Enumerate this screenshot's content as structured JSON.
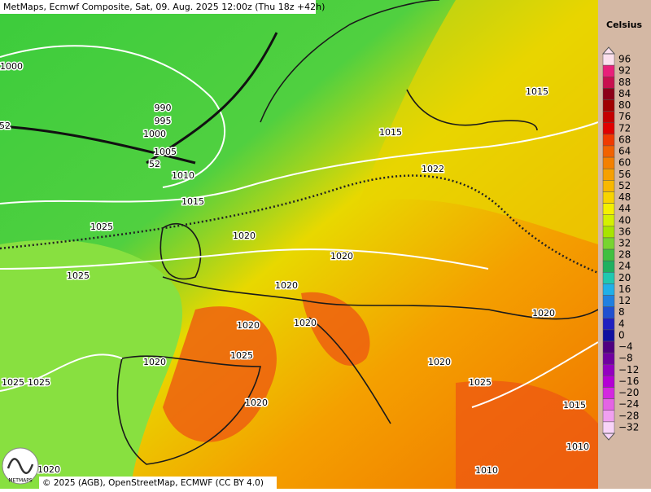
{
  "header": {
    "title": "MetMaps, Ecmwf Composite, Sat, 09. Aug. 2025 12:00z (Thu 18z +42h)"
  },
  "map": {
    "isobar_labels": [
      "1000",
      "990",
      "995",
      "1000",
      "1005",
      "52",
      "1010",
      "1015",
      "1025",
      "1020",
      "1025",
      "1020",
      "1020",
      "1020",
      "1020",
      "1025",
      "1020",
      "1025",
      "1020",
      "1015",
      "1022",
      "1020",
      "1020",
      "1025",
      "1015",
      "1010",
      "1010",
      "1020",
      "1025",
      "52",
      "1015"
    ]
  },
  "legend": {
    "unit": "Celsius",
    "labels": [
      "96",
      "92",
      "88",
      "84",
      "80",
      "76",
      "72",
      "68",
      "64",
      "60",
      "56",
      "52",
      "48",
      "44",
      "40",
      "36",
      "32",
      "28",
      "24",
      "20",
      "16",
      "12",
      "8",
      "4",
      "0",
      "−4",
      "−8",
      "−12",
      "−16",
      "−20",
      "−24",
      "−28",
      "−32"
    ],
    "colors": [
      "#fbe0ee",
      "#e8207a",
      "#c8104e",
      "#8c0018",
      "#a00000",
      "#c40000",
      "#e00000",
      "#f03a00",
      "#f26200",
      "#f48000",
      "#f6a000",
      "#f8b800",
      "#f8d400",
      "#f4f000",
      "#d4f000",
      "#a8e400",
      "#78d430",
      "#40c040",
      "#20b060",
      "#20c8b0",
      "#20b0e8",
      "#2080e0",
      "#2050d0",
      "#2020c0",
      "#1010a0",
      "#500080",
      "#7000a0",
      "#9400c0",
      "#b400d4",
      "#d428e0",
      "#e464e4",
      "#f0a0f0",
      "#f8d4f8"
    ]
  },
  "footer": {
    "logo": "METMAPS",
    "attribution": "© 2025 (AGB), OpenStreetMap, ECMWF (CC BY 4.0)"
  }
}
